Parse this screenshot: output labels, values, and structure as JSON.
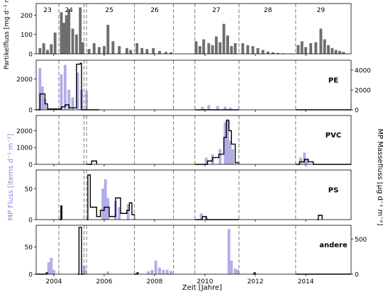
{
  "chart_data": {
    "type": "bar",
    "xlabel": "Zeit [Jahre]",
    "xlim": [
      2003.3,
      2015.8
    ],
    "x_ticks": [
      2004,
      2006,
      2008,
      2010,
      2012,
      2014
    ],
    "deployment_boundaries": [
      2004.2,
      2005.2,
      2005.3,
      2007.2,
      2008.75,
      2009.6,
      2011.35,
      2013.6
    ],
    "deployment_labels": [
      {
        "label": "23",
        "x": 2003.75
      },
      {
        "label": "24",
        "x": 2004.6
      },
      {
        "label": "25",
        "x": 2006.2
      },
      {
        "label": "26",
        "x": 2008.0
      },
      {
        "label": "27",
        "x": 2010.45
      },
      {
        "label": "28",
        "x": 2012.5
      },
      {
        "label": "29",
        "x": 2014.6
      }
    ],
    "left_group_label": "MP Fluss [items d⁻¹ m⁻²]",
    "right_group_label": "MP Massefluss [µg d⁻¹ m⁻²]",
    "colors": {
      "particle": "#6e6e6e",
      "items": "#b1aee6",
      "mass": "#000000",
      "boundary": "#7a7a7a"
    },
    "panels": [
      {
        "id": "partikelfluss",
        "ylabel": "Partikelfluss [mg d⁻¹ m⁻²]",
        "ylim": [
          0,
          260
        ],
        "yticks": [
          0,
          100,
          200
        ],
        "series": [
          {
            "kind": "bars",
            "color": "#6e6e6e",
            "points": [
              [
                2003.45,
                30
              ],
              [
                2003.6,
                55
              ],
              [
                2003.75,
                20
              ],
              [
                2003.9,
                50
              ],
              [
                2004.05,
                110
              ],
              [
                2004.3,
                215
              ],
              [
                2004.4,
                160
              ],
              [
                2004.5,
                200
              ],
              [
                2004.6,
                230
              ],
              [
                2004.75,
                130
              ],
              [
                2004.9,
                100
              ],
              [
                2005.05,
                240
              ],
              [
                2005.15,
                60
              ],
              [
                2005.4,
                25
              ],
              [
                2005.6,
                55
              ],
              [
                2005.8,
                35
              ],
              [
                2006.0,
                40
              ],
              [
                2006.15,
                150
              ],
              [
                2006.35,
                65
              ],
              [
                2006.6,
                40
              ],
              [
                2006.9,
                30
              ],
              [
                2007.05,
                20
              ],
              [
                2007.3,
                55
              ],
              [
                2007.5,
                30
              ],
              [
                2007.7,
                25
              ],
              [
                2007.95,
                30
              ],
              [
                2008.2,
                15
              ],
              [
                2008.45,
                10
              ],
              [
                2008.65,
                8
              ],
              [
                2009.65,
                65
              ],
              [
                2009.8,
                40
              ],
              [
                2009.95,
                75
              ],
              [
                2010.15,
                55
              ],
              [
                2010.3,
                45
              ],
              [
                2010.45,
                90
              ],
              [
                2010.6,
                60
              ],
              [
                2010.75,
                155
              ],
              [
                2010.9,
                95
              ],
              [
                2011.05,
                40
              ],
              [
                2011.2,
                55
              ],
              [
                2011.5,
                55
              ],
              [
                2011.7,
                45
              ],
              [
                2011.9,
                40
              ],
              [
                2012.1,
                30
              ],
              [
                2012.3,
                20
              ],
              [
                2012.5,
                12
              ],
              [
                2012.7,
                8
              ],
              [
                2012.9,
                5
              ],
              [
                2013.1,
                3
              ],
              [
                2013.4,
                2
              ],
              [
                2013.7,
                45
              ],
              [
                2013.85,
                65
              ],
              [
                2014.0,
                35
              ],
              [
                2014.2,
                55
              ],
              [
                2014.4,
                60
              ],
              [
                2014.6,
                130
              ],
              [
                2014.75,
                75
              ],
              [
                2014.9,
                45
              ],
              [
                2015.05,
                30
              ],
              [
                2015.2,
                20
              ],
              [
                2015.35,
                15
              ],
              [
                2015.5,
                10
              ]
            ]
          }
        ]
      },
      {
        "id": "pe",
        "label": "PE",
        "ylim_left": [
          0,
          3200
        ],
        "yticks_left": [
          0,
          2000
        ],
        "ylim_right": [
          0,
          5000
        ],
        "yticks_right": [
          0,
          2000,
          4000
        ],
        "series": [
          {
            "kind": "bars",
            "color": "#b1aee6",
            "points": [
              [
                2003.45,
                2700
              ],
              [
                2003.55,
                1500
              ],
              [
                2003.65,
                700
              ],
              [
                2004.3,
                2300
              ],
              [
                2004.45,
                2900
              ],
              [
                2004.6,
                1300
              ],
              [
                2004.75,
                800
              ],
              [
                2004.95,
                2400
              ],
              [
                2005.1,
                1300
              ],
              [
                2005.3,
                1200
              ],
              [
                2009.9,
                200
              ],
              [
                2010.15,
                300
              ],
              [
                2010.5,
                250
              ],
              [
                2010.8,
                200
              ],
              [
                2011.0,
                150
              ]
            ]
          },
          {
            "kind": "step",
            "axis": "right",
            "color": "#000000",
            "points": [
              [
                2003.3,
                0
              ],
              [
                2003.45,
                1600
              ],
              [
                2003.65,
                600
              ],
              [
                2003.75,
                80
              ],
              [
                2004.3,
                300
              ],
              [
                2004.45,
                500
              ],
              [
                2004.6,
                200
              ],
              [
                2004.9,
                4600
              ],
              [
                2005.05,
                4700
              ],
              [
                2005.1,
                0
              ],
              [
                2005.8,
                0
              ]
            ]
          },
          {
            "kind": "step",
            "axis": "right",
            "color": "#000000",
            "points": [
              [
                2009.6,
                0
              ],
              [
                2011.35,
                0
              ]
            ]
          },
          {
            "kind": "step",
            "axis": "right",
            "color": "#000000",
            "points": [
              [
                2013.6,
                0
              ],
              [
                2015.8,
                0
              ]
            ]
          }
        ]
      },
      {
        "id": "pvc",
        "label": "PVC",
        "ylim_left": [
          0,
          2900
        ],
        "yticks_left": [
          0,
          1000,
          2000
        ],
        "series": [
          {
            "kind": "bars",
            "color": "#b1aee6",
            "points": [
              [
                2010.05,
                400
              ],
              [
                2010.3,
                600
              ],
              [
                2010.6,
                900
              ],
              [
                2010.8,
                2500
              ],
              [
                2010.9,
                2700
              ],
              [
                2011.0,
                1400
              ],
              [
                2011.1,
                900
              ],
              [
                2013.8,
                400
              ],
              [
                2013.95,
                700
              ],
              [
                2014.05,
                300
              ]
            ]
          },
          {
            "kind": "step",
            "axis": "right",
            "color": "#000000",
            "points": [
              [
                2005.3,
                0
              ],
              [
                2005.5,
                200
              ],
              [
                2005.7,
                0
              ]
            ]
          },
          {
            "kind": "step",
            "axis": "right",
            "color": "#000000",
            "points": [
              [
                2009.6,
                0
              ],
              [
                2010.1,
                200
              ],
              [
                2010.3,
                400
              ],
              [
                2010.55,
                600
              ],
              [
                2010.75,
                1600
              ],
              [
                2010.85,
                2600
              ],
              [
                2010.95,
                2000
              ],
              [
                2011.05,
                1200
              ],
              [
                2011.2,
                100
              ],
              [
                2011.35,
                0
              ]
            ]
          },
          {
            "kind": "step",
            "axis": "right",
            "color": "#000000",
            "points": [
              [
                2013.6,
                0
              ],
              [
                2013.75,
                150
              ],
              [
                2013.95,
                300
              ],
              [
                2014.1,
                150
              ],
              [
                2014.3,
                0
              ],
              [
                2015.8,
                0
              ]
            ]
          }
        ]
      },
      {
        "id": "ps",
        "label": "PS",
        "ylim_left": [
          0,
          80
        ],
        "yticks_left": [
          0,
          50
        ],
        "series": [
          {
            "kind": "bars",
            "color": "#b1aee6",
            "points": [
              [
                2005.95,
                50
              ],
              [
                2006.05,
                65
              ],
              [
                2006.15,
                35
              ],
              [
                2006.45,
                30
              ],
              [
                2006.6,
                20
              ],
              [
                2006.95,
                25
              ],
              [
                2009.85,
                10
              ],
              [
                2010.05,
                5
              ]
            ]
          },
          {
            "kind": "step",
            "axis": "right",
            "color": "#000000",
            "points": [
              [
                2004.2,
                0
              ],
              [
                2004.28,
                22
              ],
              [
                2004.32,
                0
              ]
            ]
          },
          {
            "kind": "step",
            "axis": "right",
            "color": "#000000",
            "points": [
              [
                2005.3,
                0
              ],
              [
                2005.35,
                72
              ],
              [
                2005.45,
                20
              ],
              [
                2005.7,
                5
              ],
              [
                2005.85,
                15
              ],
              [
                2006.0,
                20
              ],
              [
                2006.2,
                5
              ],
              [
                2006.45,
                35
              ],
              [
                2006.65,
                10
              ],
              [
                2006.9,
                15
              ],
              [
                2007.0,
                27
              ],
              [
                2007.1,
                8
              ],
              [
                2007.2,
                0
              ]
            ]
          },
          {
            "kind": "step",
            "axis": "right",
            "color": "#000000",
            "points": [
              [
                2009.6,
                0
              ],
              [
                2009.9,
                5
              ],
              [
                2010.05,
                0
              ],
              [
                2011.35,
                0
              ]
            ]
          },
          {
            "kind": "step",
            "axis": "right",
            "color": "#000000",
            "points": [
              [
                2014.45,
                0
              ],
              [
                2014.5,
                7
              ],
              [
                2014.65,
                0
              ]
            ]
          }
        ]
      },
      {
        "id": "andere",
        "label": "andere",
        "ylim_left": [
          0,
          90
        ],
        "yticks_left": [
          0,
          50
        ],
        "ylim_right": [
          0,
          700
        ],
        "yticks_right": [
          0,
          500
        ],
        "series": [
          {
            "kind": "bars",
            "color": "#b1aee6",
            "points": [
              [
                2003.8,
                22
              ],
              [
                2003.9,
                30
              ],
              [
                2004.0,
                8
              ],
              [
                2005.2,
                15
              ],
              [
                2005.25,
                8
              ],
              [
                2006.15,
                5
              ],
              [
                2007.75,
                5
              ],
              [
                2007.9,
                8
              ],
              [
                2008.05,
                25
              ],
              [
                2008.2,
                12
              ],
              [
                2008.35,
                8
              ],
              [
                2008.5,
                8
              ],
              [
                2008.65,
                6
              ],
              [
                2010.95,
                83
              ],
              [
                2011.05,
                25
              ],
              [
                2011.2,
                10
              ],
              [
                2011.3,
                8
              ]
            ]
          },
          {
            "kind": "step",
            "axis": "right",
            "color": "#000000",
            "points": [
              [
                2003.3,
                0
              ],
              [
                2003.7,
                20
              ],
              [
                2003.75,
                0
              ]
            ]
          },
          {
            "kind": "step",
            "axis": "right",
            "color": "#000000",
            "points": [
              [
                2004.95,
                0
              ],
              [
                2005.0,
                670
              ],
              [
                2005.1,
                0
              ],
              [
                2005.2,
                0
              ]
            ]
          },
          {
            "kind": "step",
            "axis": "right",
            "color": "#000000",
            "points": [
              [
                2007.2,
                0
              ],
              [
                2007.3,
                20
              ],
              [
                2007.35,
                0
              ]
            ]
          },
          {
            "kind": "step",
            "axis": "right",
            "color": "#000000",
            "points": [
              [
                2011.9,
                0
              ],
              [
                2011.95,
                20
              ],
              [
                2012.0,
                0
              ]
            ]
          },
          {
            "kind": "step",
            "axis": "right",
            "color": "#000000",
            "points": [
              [
                2013.6,
                0
              ],
              [
                2015.8,
                0
              ]
            ]
          }
        ]
      }
    ]
  }
}
